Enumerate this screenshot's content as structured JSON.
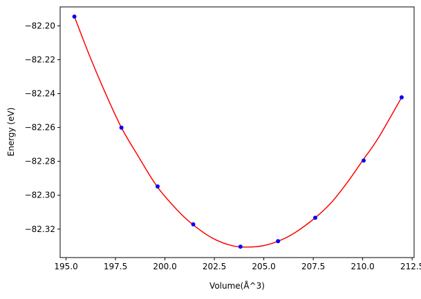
{
  "chart_data": {
    "type": "scatter",
    "title": "",
    "xlabel": "Volume(Å^3)",
    "ylabel": "Energy (eV)",
    "xlim": [
      194.7,
      212.6
    ],
    "ylim": [
      -82.3368,
      -82.1888
    ],
    "xticks": [
      195.0,
      197.5,
      200.0,
      202.5,
      205.0,
      207.5,
      210.0,
      212.5
    ],
    "xtick_labels": [
      "195.0",
      "197.5",
      "200.0",
      "202.5",
      "205.0",
      "207.5",
      "210.0",
      "212.5"
    ],
    "yticks": [
      -82.2,
      -82.22,
      -82.24,
      -82.26,
      -82.28,
      -82.3,
      -82.32
    ],
    "ytick_labels": [
      "−82.20",
      "−82.22",
      "−82.24",
      "−82.26",
      "−82.28",
      "−82.30",
      "−82.32"
    ],
    "grid": false,
    "series": [
      {
        "kind": "points",
        "color": "#0000ff",
        "x": [
          195.42,
          197.8,
          199.63,
          201.43,
          203.82,
          205.72,
          207.6,
          210.05,
          211.97
        ],
        "y": [
          -82.1945,
          -82.2601,
          -82.2948,
          -82.3172,
          -82.3304,
          -82.3271,
          -82.3133,
          -82.2795,
          -82.2422
        ]
      },
      {
        "kind": "fit-curve",
        "color": "#ff0000",
        "x": [
          195.42,
          196.2,
          197.0,
          197.8,
          198.6,
          199.6,
          200.6,
          201.4,
          202.4,
          203.4,
          204.2,
          205.0,
          205.8,
          206.6,
          207.6,
          208.4,
          209.2,
          210.0,
          210.8,
          211.97
        ],
        "y": [
          -82.1945,
          -82.218,
          -82.24,
          -82.2601,
          -82.276,
          -82.2948,
          -82.3085,
          -82.3172,
          -82.3253,
          -82.3298,
          -82.3306,
          -82.3297,
          -82.3268,
          -82.3219,
          -82.3133,
          -82.3045,
          -82.2928,
          -82.2795,
          -82.266,
          -82.2422
        ]
      }
    ]
  }
}
